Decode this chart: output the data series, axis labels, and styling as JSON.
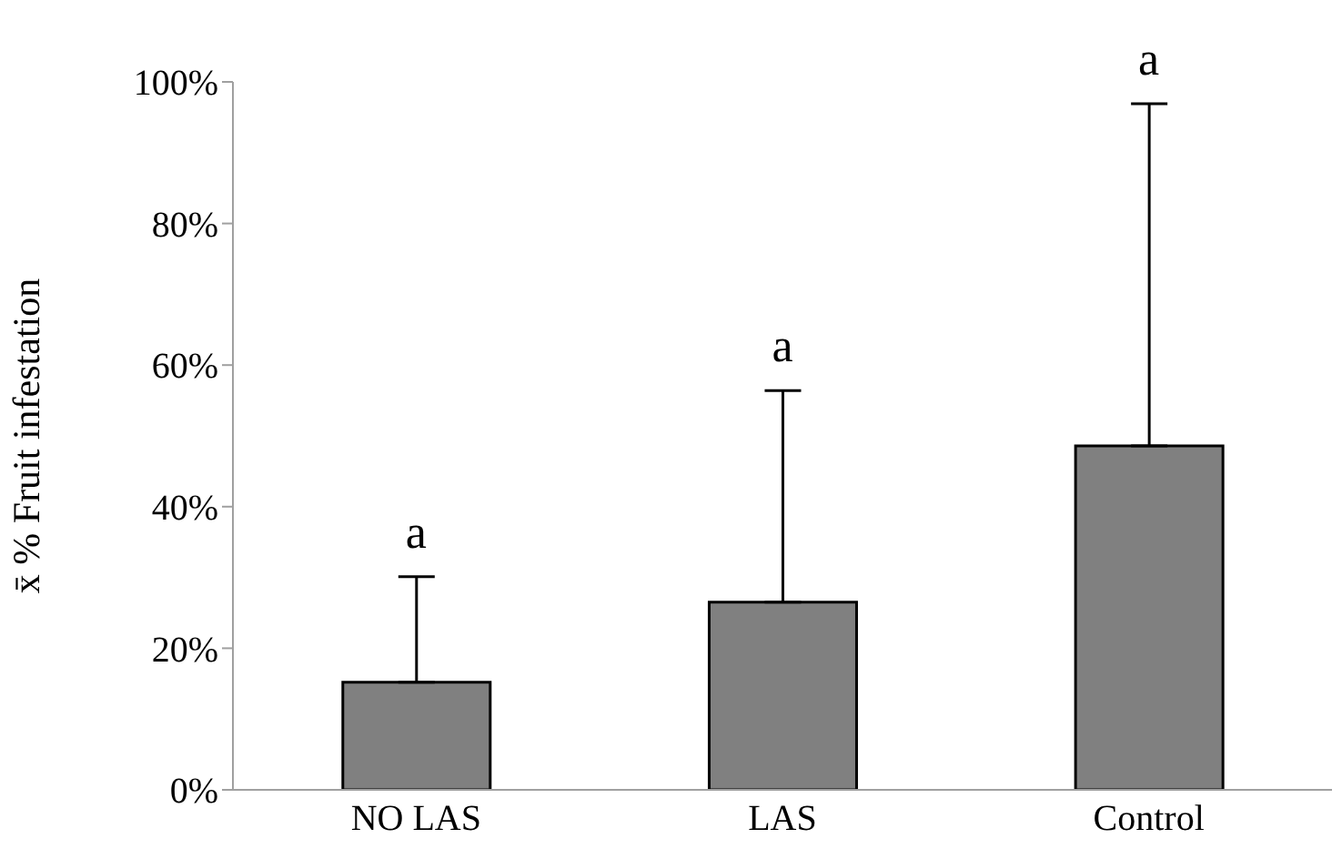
{
  "chart_data": {
    "type": "bar",
    "ylabel": "x̄ % Fruit infestation",
    "categories": [
      "NO LAS",
      "LAS",
      "Control"
    ],
    "values": [
      15.2,
      26.5,
      48.6
    ],
    "errors": [
      [
        15.2,
        30.1
      ],
      [
        26.5,
        56.4
      ],
      [
        48.6,
        96.9
      ]
    ],
    "color": "#808080",
    "ylim": [
      0,
      100
    ],
    "yticks": [
      {
        "value": 0,
        "label": "0%"
      },
      {
        "value": 20,
        "label": "20%"
      },
      {
        "value": 40,
        "label": "40%"
      },
      {
        "value": 60,
        "label": "60%"
      },
      {
        "value": 80,
        "label": "80%"
      },
      {
        "value": 100,
        "label": "100%"
      }
    ],
    "annotations": [
      {
        "text": "a",
        "x": "NO LAS",
        "y": 30.1
      },
      {
        "text": "a",
        "x": "LAS",
        "y": 56.4
      },
      {
        "text": "a",
        "x": "Control",
        "y": 96.9
      }
    ],
    "grid": false
  }
}
